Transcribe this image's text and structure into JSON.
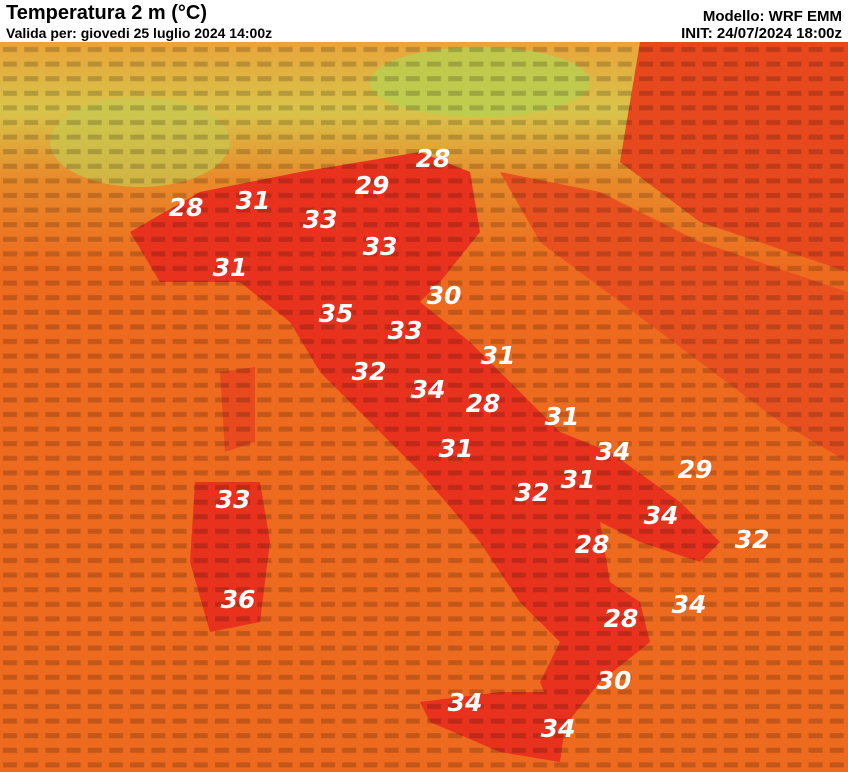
{
  "header": {
    "title": "Temperatura 2 m (°C)",
    "subtitle": "Valida per: giovedi 25 luglio 2024 14:00z",
    "model": "Modello: WRF EMM",
    "init": "INIT: 24/07/2024 18:00z"
  },
  "labels": [
    28,
    29,
    28,
    31,
    33,
    33,
    31,
    30,
    35,
    33,
    31,
    32,
    34,
    28,
    31,
    31,
    34,
    29,
    32,
    31,
    33,
    34,
    32,
    28,
    36,
    34,
    28,
    30,
    34,
    34
  ]
}
